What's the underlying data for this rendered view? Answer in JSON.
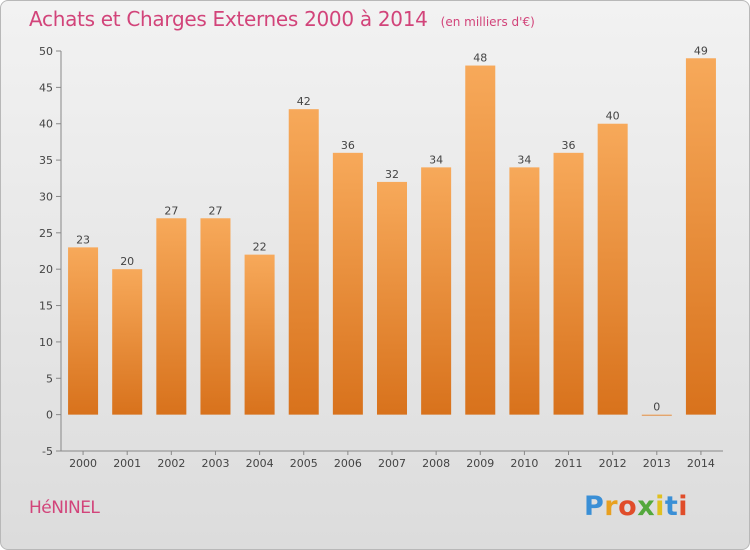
{
  "header": {
    "title": "Achats et Charges Externes 2000 à 2014",
    "subtitle": "(en milliers d'€)"
  },
  "footer": {
    "commune": "HéNINEL",
    "brand": "Proxiti"
  },
  "chart_data": {
    "type": "bar",
    "title": "Achats et Charges Externes 2000 à 2014",
    "subtitle": "(en milliers d'€)",
    "xlabel": "",
    "ylabel": "",
    "categories": [
      "2000",
      "2001",
      "2002",
      "2003",
      "2004",
      "2005",
      "2006",
      "2007",
      "2008",
      "2009",
      "2010",
      "2011",
      "2012",
      "2013",
      "2014"
    ],
    "values": [
      23,
      20,
      27,
      27,
      22,
      42,
      36,
      32,
      34,
      48,
      34,
      36,
      40,
      0,
      49
    ],
    "ylim": [
      -5,
      50
    ],
    "yticks": [
      -5,
      0,
      5,
      10,
      15,
      20,
      25,
      30,
      35,
      40,
      45,
      50
    ],
    "grid": false,
    "colors": {
      "bar_top": "#f7a95a",
      "bar_bottom": "#d8721c",
      "title": "#d2447a"
    }
  }
}
